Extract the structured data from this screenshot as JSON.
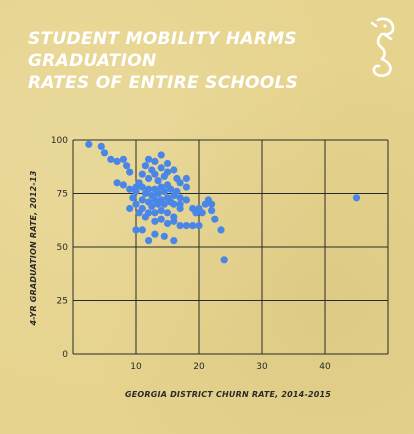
{
  "header": {
    "title_line1": "STUDENT MOBILITY HARMS GRADUATION",
    "title_line2": "RATES OF ENTIRE SCHOOLS",
    "logo_icon": "seahorse-icon"
  },
  "colors": {
    "background": "#e6d48e",
    "point": "#4a86e8",
    "grid": "#2a2a2a",
    "title": "#ffffff"
  },
  "chart_data": {
    "type": "scatter",
    "title": "STUDENT MOBILITY HARMS GRADUATION RATES OF ENTIRE SCHOOLS",
    "xlabel": "GEORGIA DISTRICT CHURN RATE, 2014-2015",
    "ylabel": "4-YR GRADUATION RATE, 2012-13",
    "xlim": [
      0,
      50
    ],
    "ylim": [
      0,
      100
    ],
    "xticks": [
      10,
      20,
      30,
      40
    ],
    "yticks": [
      0,
      25,
      50,
      75,
      100
    ],
    "grid": true,
    "points": [
      {
        "x": 2.5,
        "y": 98
      },
      {
        "x": 4.5,
        "y": 97
      },
      {
        "x": 5,
        "y": 94
      },
      {
        "x": 6,
        "y": 91
      },
      {
        "x": 7,
        "y": 90
      },
      {
        "x": 8,
        "y": 91
      },
      {
        "x": 8.5,
        "y": 88
      },
      {
        "x": 9,
        "y": 85
      },
      {
        "x": 7,
        "y": 80
      },
      {
        "x": 8,
        "y": 79
      },
      {
        "x": 9,
        "y": 77
      },
      {
        "x": 10,
        "y": 78
      },
      {
        "x": 9.5,
        "y": 73
      },
      {
        "x": 10,
        "y": 76
      },
      {
        "x": 10.5,
        "y": 80
      },
      {
        "x": 11,
        "y": 84
      },
      {
        "x": 11.5,
        "y": 88
      },
      {
        "x": 12,
        "y": 91
      },
      {
        "x": 13,
        "y": 90
      },
      {
        "x": 14,
        "y": 93
      },
      {
        "x": 15,
        "y": 89
      },
      {
        "x": 12,
        "y": 82
      },
      {
        "x": 12.5,
        "y": 86
      },
      {
        "x": 13,
        "y": 84
      },
      {
        "x": 13.5,
        "y": 81
      },
      {
        "x": 14,
        "y": 87
      },
      {
        "x": 14.5,
        "y": 83
      },
      {
        "x": 15,
        "y": 85
      },
      {
        "x": 16,
        "y": 86
      },
      {
        "x": 16.5,
        "y": 82
      },
      {
        "x": 17,
        "y": 80
      },
      {
        "x": 18,
        "y": 82
      },
      {
        "x": 18,
        "y": 78
      },
      {
        "x": 11,
        "y": 78
      },
      {
        "x": 11.5,
        "y": 75
      },
      {
        "x": 12,
        "y": 77
      },
      {
        "x": 12.5,
        "y": 74
      },
      {
        "x": 13,
        "y": 77
      },
      {
        "x": 13.5,
        "y": 75
      },
      {
        "x": 14,
        "y": 78
      },
      {
        "x": 14.5,
        "y": 76
      },
      {
        "x": 15,
        "y": 79
      },
      {
        "x": 15.5,
        "y": 77
      },
      {
        "x": 16,
        "y": 74
      },
      {
        "x": 16.5,
        "y": 76
      },
      {
        "x": 17,
        "y": 73
      },
      {
        "x": 11,
        "y": 72
      },
      {
        "x": 12,
        "y": 71
      },
      {
        "x": 12.5,
        "y": 69
      },
      {
        "x": 13,
        "y": 72
      },
      {
        "x": 13.5,
        "y": 70
      },
      {
        "x": 14,
        "y": 72
      },
      {
        "x": 14.5,
        "y": 70
      },
      {
        "x": 15,
        "y": 73
      },
      {
        "x": 15.5,
        "y": 71
      },
      {
        "x": 16,
        "y": 70
      },
      {
        "x": 17,
        "y": 70
      },
      {
        "x": 18,
        "y": 72
      },
      {
        "x": 10,
        "y": 70
      },
      {
        "x": 9,
        "y": 68
      },
      {
        "x": 10.5,
        "y": 66
      },
      {
        "x": 11,
        "y": 68
      },
      {
        "x": 11.5,
        "y": 64
      },
      {
        "x": 12,
        "y": 66
      },
      {
        "x": 13,
        "y": 66
      },
      {
        "x": 14,
        "y": 67
      },
      {
        "x": 15,
        "y": 66
      },
      {
        "x": 16,
        "y": 64
      },
      {
        "x": 17,
        "y": 68
      },
      {
        "x": 19,
        "y": 68
      },
      {
        "x": 19.5,
        "y": 66
      },
      {
        "x": 20,
        "y": 68
      },
      {
        "x": 21,
        "y": 70
      },
      {
        "x": 21.5,
        "y": 72
      },
      {
        "x": 22,
        "y": 70
      },
      {
        "x": 20.5,
        "y": 66
      },
      {
        "x": 22,
        "y": 67
      },
      {
        "x": 13,
        "y": 62
      },
      {
        "x": 14,
        "y": 63
      },
      {
        "x": 15,
        "y": 61
      },
      {
        "x": 16,
        "y": 62
      },
      {
        "x": 17,
        "y": 60
      },
      {
        "x": 18,
        "y": 60
      },
      {
        "x": 19,
        "y": 60
      },
      {
        "x": 20,
        "y": 60
      },
      {
        "x": 22.5,
        "y": 63
      },
      {
        "x": 10,
        "y": 58
      },
      {
        "x": 11,
        "y": 58
      },
      {
        "x": 13,
        "y": 56
      },
      {
        "x": 12,
        "y": 53
      },
      {
        "x": 14.5,
        "y": 55
      },
      {
        "x": 16,
        "y": 53
      },
      {
        "x": 23.5,
        "y": 58
      },
      {
        "x": 24,
        "y": 44
      },
      {
        "x": 45,
        "y": 73
      }
    ]
  }
}
